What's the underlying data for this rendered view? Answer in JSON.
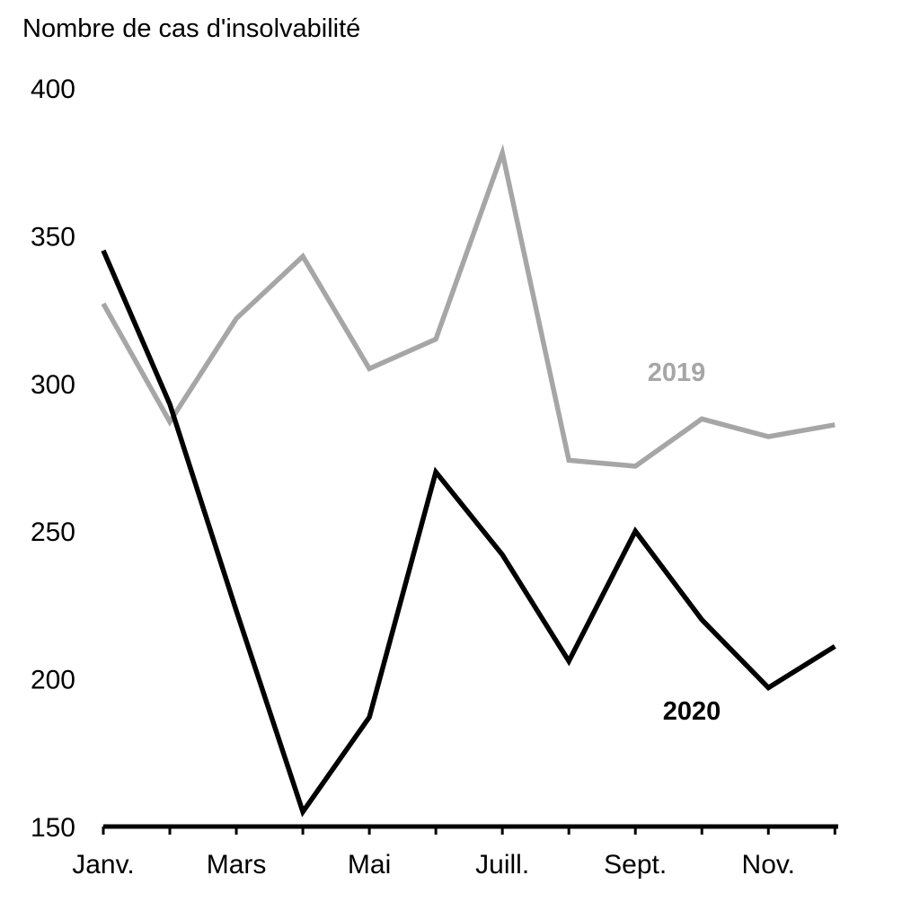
{
  "chart_data": {
    "type": "line",
    "ylabel": "Nombre de cas d'insolvabilité",
    "ylim": [
      150,
      400
    ],
    "yticks": [
      150,
      200,
      250,
      300,
      350,
      400
    ],
    "x_tick_labels": [
      "Janv.",
      "Mars",
      "Mai",
      "Juill.",
      "Sept.",
      "Nov."
    ],
    "x_tick_positions": [
      1,
      3,
      5,
      7,
      9,
      11
    ],
    "x": [
      1,
      2,
      3,
      4,
      5,
      6,
      7,
      8,
      9,
      10,
      11,
      12
    ],
    "grid": false,
    "series": [
      {
        "name": "2019",
        "color": "#a6a6a6",
        "values": [
          327,
          287,
          322,
          343,
          305,
          315,
          378,
          274,
          272,
          288,
          282,
          286
        ]
      },
      {
        "name": "2020",
        "color": "#000000",
        "values": [
          345,
          293,
          223,
          155,
          187,
          270,
          242,
          206,
          250,
          220,
          197,
          211
        ]
      }
    ]
  }
}
